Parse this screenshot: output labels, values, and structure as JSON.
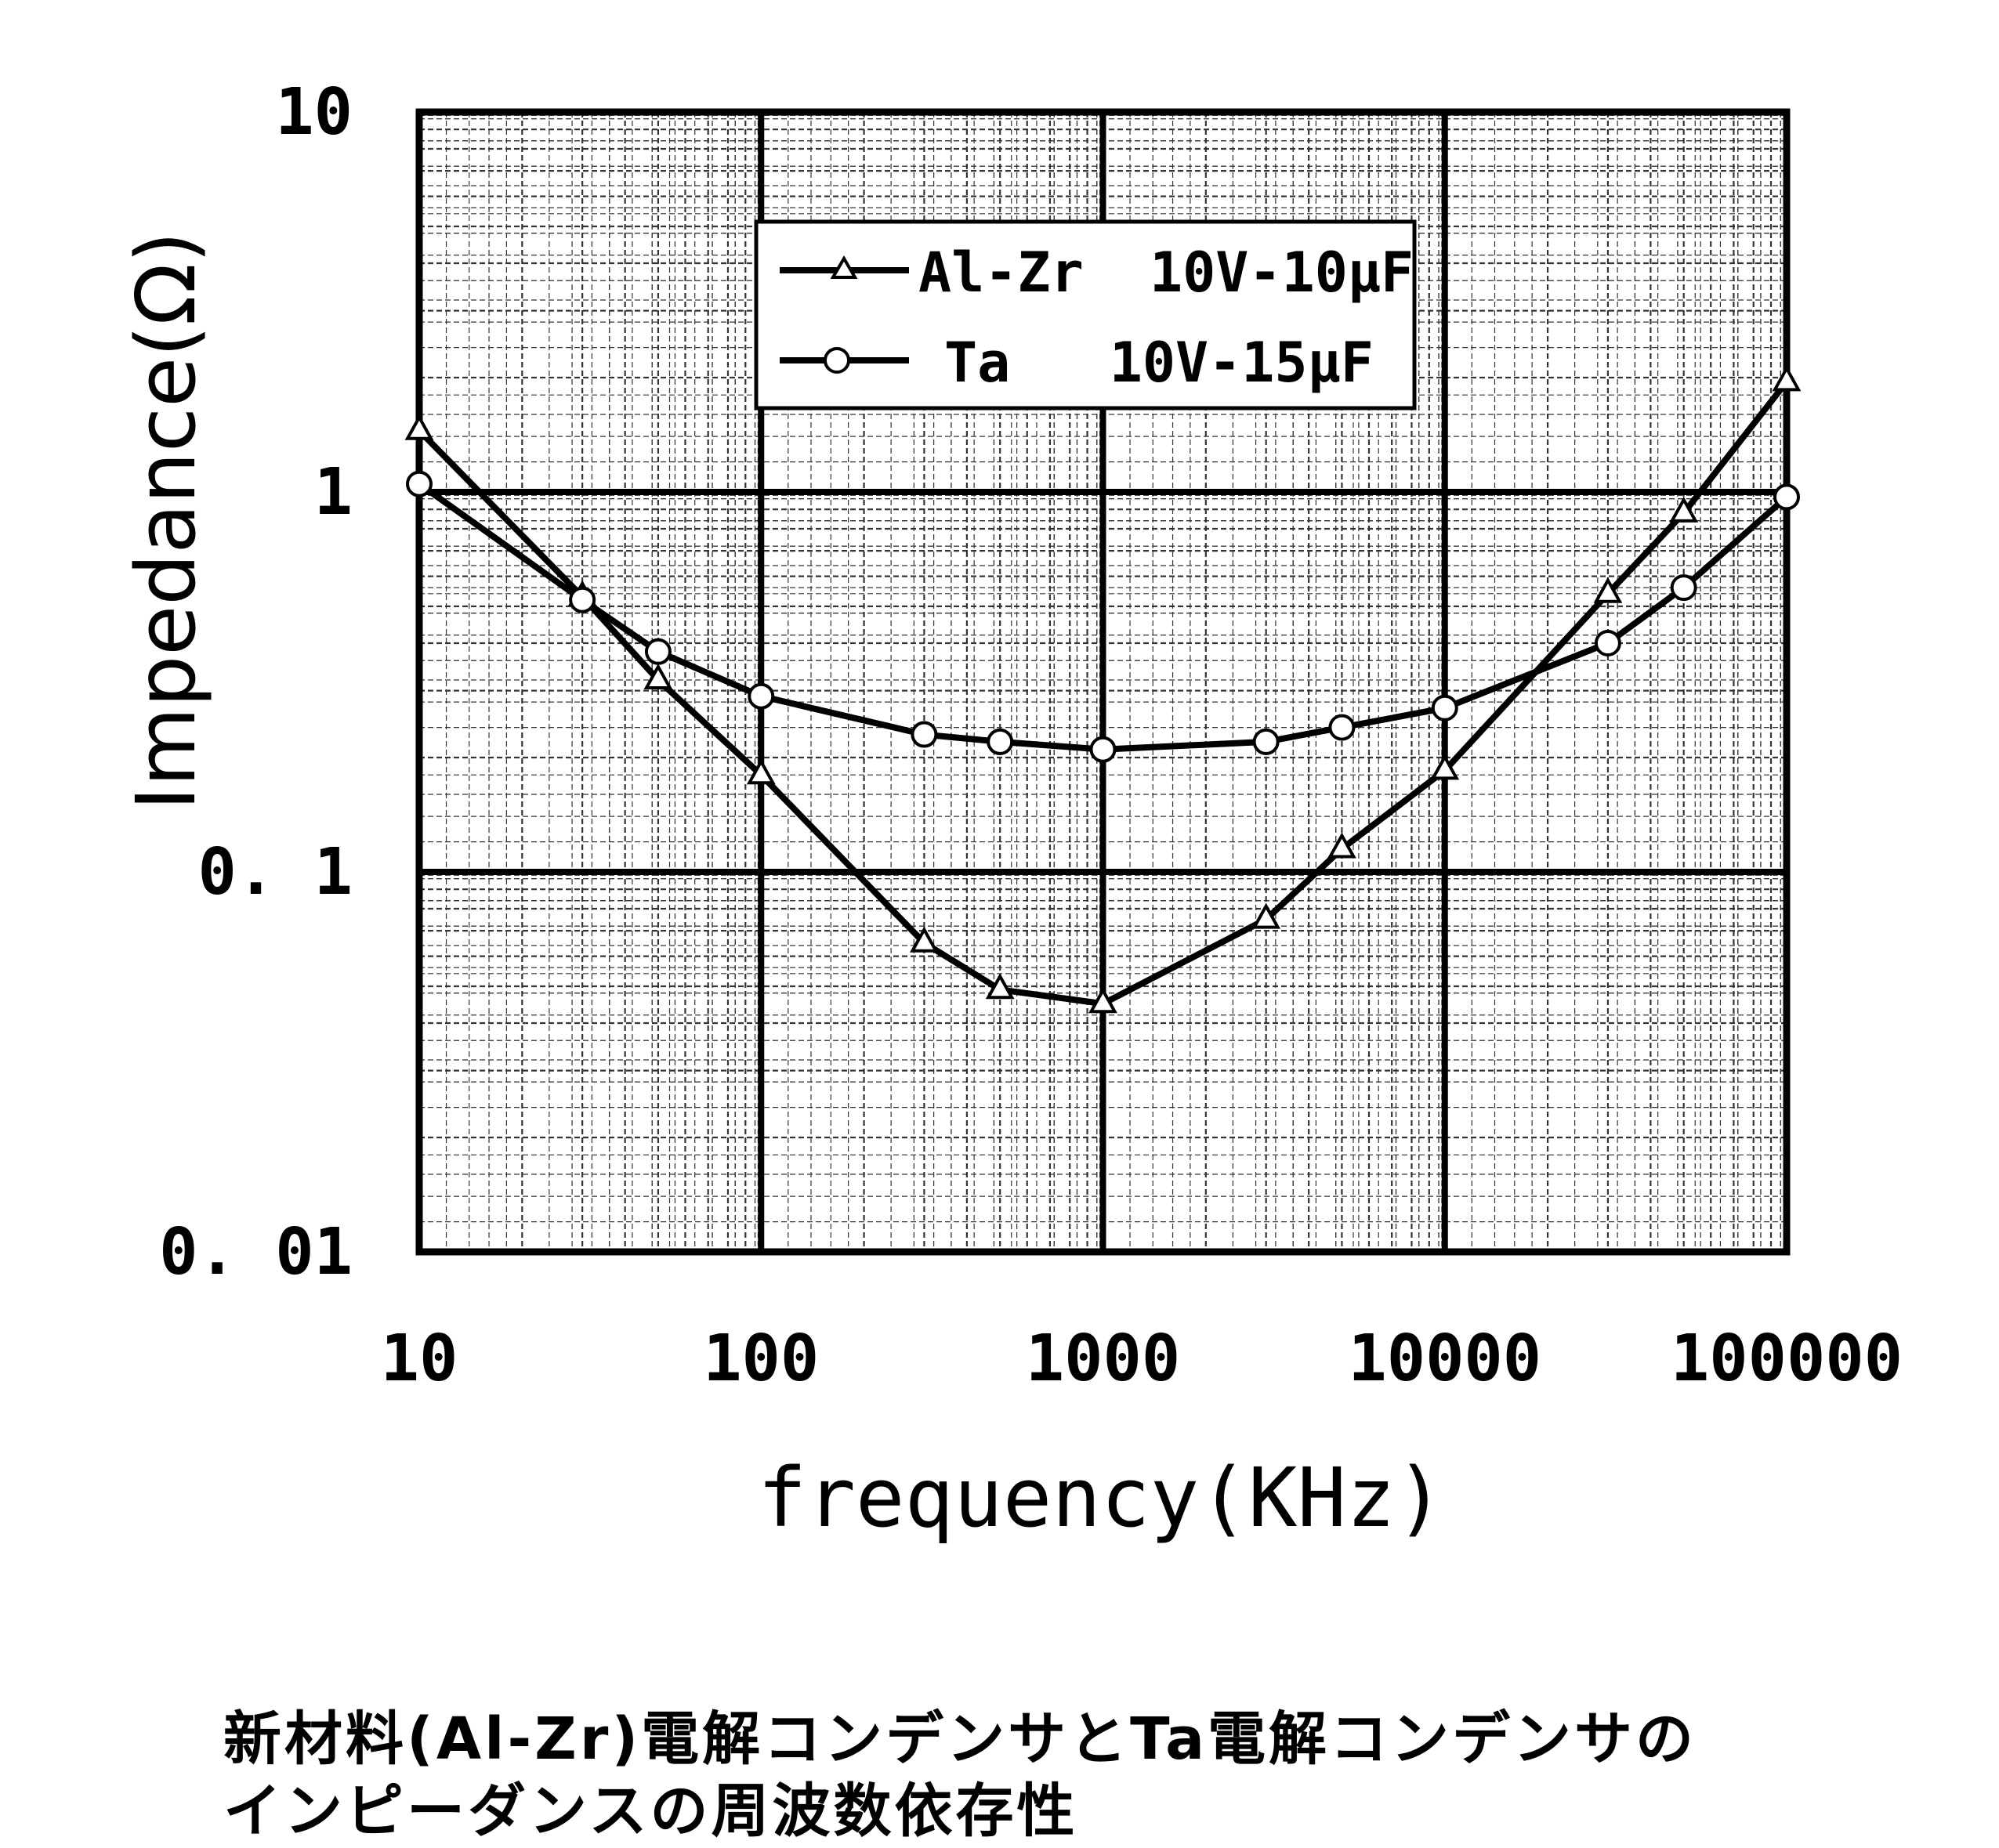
{
  "chart_data": {
    "type": "line",
    "xlabel": "frequency(KHz)",
    "ylabel": "Impedance(Ω)",
    "x_scale": "log",
    "y_scale": "log",
    "xlim": [
      10,
      100000
    ],
    "ylim": [
      0.01,
      10
    ],
    "x_ticks": [
      "10",
      "100",
      "1000",
      "10000",
      "100000"
    ],
    "y_ticks": [
      "10",
      "1",
      "0. 1",
      "0. 01"
    ],
    "grid": true,
    "legend_position": "top-center",
    "series": [
      {
        "name": "Al-Zr  10V-10μF",
        "marker": "triangle",
        "x": [
          10,
          30,
          50,
          100,
          300,
          500,
          1000,
          3000,
          5000,
          10000,
          30000,
          50000,
          100000
        ],
        "y": [
          1.45,
          0.53,
          0.32,
          0.18,
          0.065,
          0.049,
          0.045,
          0.075,
          0.115,
          0.185,
          0.54,
          0.88,
          1.95
        ]
      },
      {
        "name": "Ta   10V-15μF",
        "marker": "circle",
        "x": [
          10,
          30,
          50,
          100,
          300,
          500,
          1000,
          3000,
          5000,
          10000,
          30000,
          50000,
          100000
        ],
        "y": [
          1.05,
          0.52,
          0.38,
          0.29,
          0.23,
          0.22,
          0.21,
          0.22,
          0.24,
          0.27,
          0.4,
          0.56,
          0.97
        ]
      }
    ]
  },
  "caption": {
    "line1": "新材料(Al-Zr)電解コンデンサとTa電解コンデンサの",
    "line2": "インピーダンスの周波数依存性"
  }
}
